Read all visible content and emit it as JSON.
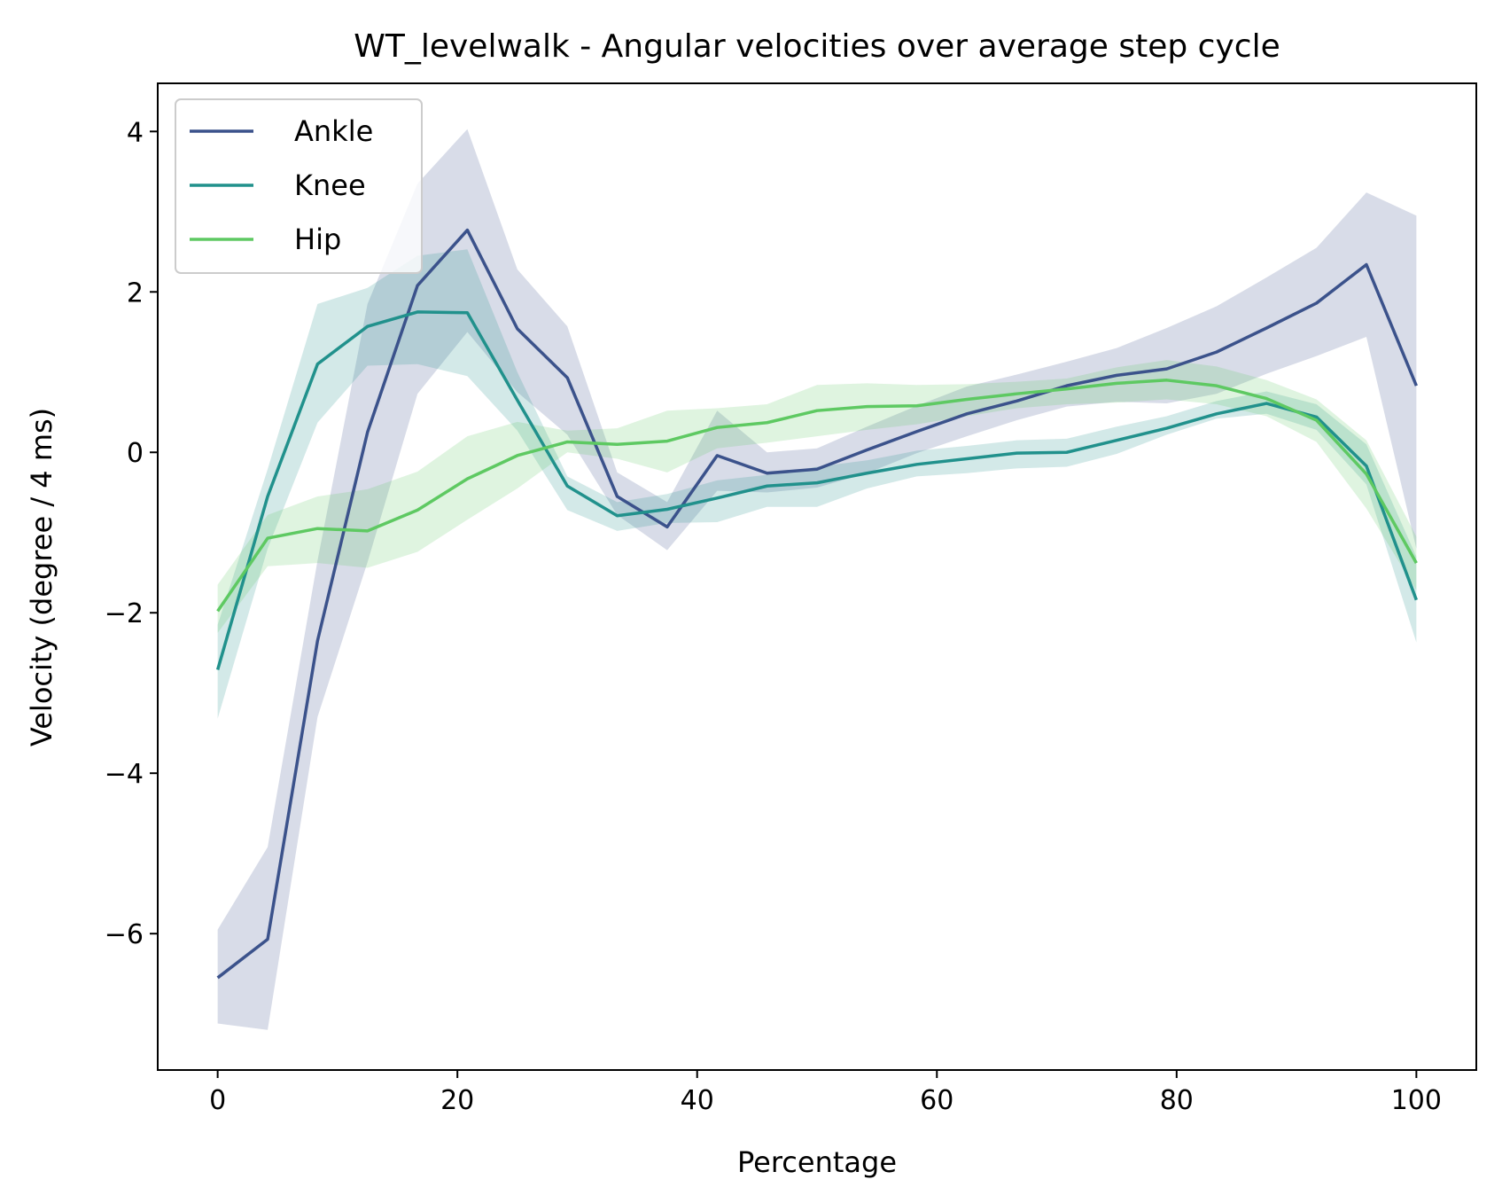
{
  "chart_data": {
    "type": "line",
    "title": "WT_levelwalk - Angular velocities over average step cycle",
    "xlabel": "Percentage",
    "ylabel": "Velocity (degree / 4 ms)",
    "xlim": [
      -5,
      105
    ],
    "ylim": [
      -7.7,
      4.6
    ],
    "xticks": [
      0,
      20,
      40,
      60,
      80,
      100
    ],
    "yticks": [
      -6,
      -4,
      -2,
      0,
      2,
      4
    ],
    "xtick_labels": [
      "0",
      "20",
      "40",
      "60",
      "80",
      "100"
    ],
    "ytick_labels": [
      "−6",
      "−4",
      "−2",
      "0",
      "2",
      "4"
    ],
    "grid": false,
    "legend_position": "upper-left",
    "x": [
      0,
      4.17,
      8.33,
      12.5,
      16.67,
      20.83,
      25,
      29.17,
      33.33,
      37.5,
      41.67,
      45.83,
      50,
      54.17,
      58.33,
      62.5,
      66.67,
      70.83,
      75,
      79.17,
      83.33,
      87.5,
      91.67,
      95.83,
      100
    ],
    "series": [
      {
        "name": "Ankle",
        "color": "#3b528b",
        "values": [
          -6.55,
          -6.07,
          -2.35,
          0.25,
          2.08,
          2.77,
          1.54,
          0.93,
          -0.55,
          -0.93,
          -0.04,
          -0.26,
          -0.21,
          0.03,
          0.26,
          0.48,
          0.64,
          0.83,
          0.96,
          1.04,
          1.25,
          1.55,
          1.86,
          2.34,
          0.83
        ],
        "upper": [
          -5.95,
          -4.92,
          -1.35,
          1.85,
          3.35,
          4.03,
          2.28,
          1.57,
          -0.25,
          -0.62,
          0.52,
          0.0,
          0.05,
          0.32,
          0.58,
          0.82,
          0.97,
          1.13,
          1.3,
          1.55,
          1.82,
          2.18,
          2.55,
          3.24,
          2.95
        ],
        "lower": [
          -7.12,
          -7.2,
          -3.3,
          -1.37,
          0.73,
          1.5,
          0.75,
          0.22,
          -0.78,
          -1.22,
          -0.48,
          -0.5,
          -0.44,
          -0.26,
          -0.01,
          0.2,
          0.4,
          0.57,
          0.63,
          0.61,
          0.73,
          0.98,
          1.2,
          1.44,
          -1.2
        ],
        "band_color": "#3b528b",
        "band_opacity": 0.2
      },
      {
        "name": "Knee",
        "color": "#21918c",
        "values": [
          -2.71,
          -0.55,
          1.1,
          1.57,
          1.75,
          1.74,
          0.65,
          -0.42,
          -0.79,
          -0.71,
          -0.57,
          -0.42,
          -0.38,
          -0.26,
          -0.15,
          -0.08,
          -0.01,
          0.0,
          0.15,
          0.3,
          0.48,
          0.61,
          0.44,
          -0.17,
          -1.84
        ],
        "upper": [
          -2.15,
          -0.21,
          1.85,
          2.05,
          2.45,
          2.53,
          1.0,
          -0.3,
          -0.62,
          -0.52,
          -0.35,
          -0.28,
          -0.18,
          -0.1,
          0.02,
          0.08,
          0.15,
          0.17,
          0.32,
          0.45,
          0.64,
          0.76,
          0.6,
          0.1,
          -1.3
        ],
        "lower": [
          -3.32,
          -1.2,
          0.37,
          1.08,
          1.1,
          0.95,
          0.27,
          -0.72,
          -0.98,
          -0.88,
          -0.87,
          -0.68,
          -0.68,
          -0.45,
          -0.3,
          -0.26,
          -0.2,
          -0.18,
          -0.02,
          0.22,
          0.42,
          0.48,
          0.28,
          -0.4,
          -2.37
        ],
        "band_color": "#21918c",
        "band_opacity": 0.2
      },
      {
        "name": "Hip",
        "color": "#5ec962",
        "values": [
          -1.98,
          -1.07,
          -0.95,
          -0.98,
          -0.72,
          -0.33,
          -0.04,
          0.13,
          0.1,
          0.14,
          0.31,
          0.37,
          0.52,
          0.57,
          0.58,
          0.66,
          0.73,
          0.79,
          0.86,
          0.9,
          0.83,
          0.67,
          0.4,
          -0.27,
          -1.38
        ],
        "upper": [
          -1.65,
          -0.78,
          -0.55,
          -0.46,
          -0.24,
          0.2,
          0.38,
          0.27,
          0.3,
          0.52,
          0.55,
          0.6,
          0.84,
          0.86,
          0.84,
          0.85,
          0.88,
          0.92,
          1.06,
          1.15,
          1.07,
          0.9,
          0.66,
          0.15,
          -1.05
        ],
        "lower": [
          -2.25,
          -1.42,
          -1.38,
          -1.44,
          -1.24,
          -0.84,
          -0.45,
          0.0,
          -0.08,
          -0.25,
          0.05,
          0.12,
          0.2,
          0.28,
          0.35,
          0.45,
          0.55,
          0.6,
          0.62,
          0.66,
          0.6,
          0.45,
          0.13,
          -0.7,
          -1.72
        ],
        "band_color": "#5ec962",
        "band_opacity": 0.2
      }
    ]
  }
}
